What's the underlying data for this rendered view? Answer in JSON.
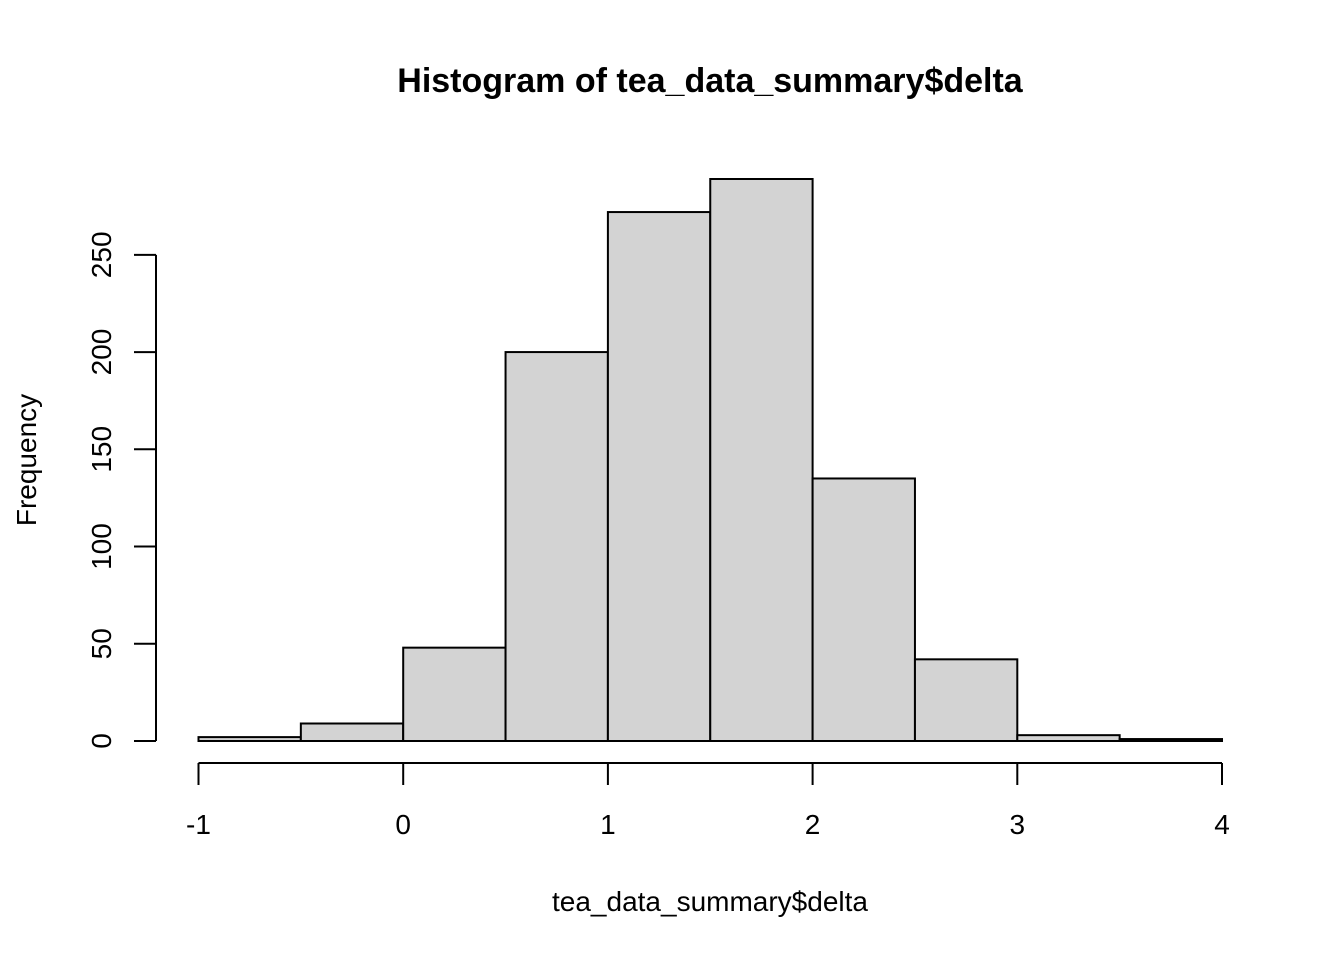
{
  "chart_data": {
    "type": "bar",
    "title": "Histogram of tea_data_summary$delta",
    "xlabel": "tea_data_summary$delta",
    "ylabel": "Frequency",
    "bins": [
      {
        "start": -1.0,
        "end": -0.5,
        "count": 2
      },
      {
        "start": -0.5,
        "end": 0.0,
        "count": 9
      },
      {
        "start": 0.0,
        "end": 0.5,
        "count": 48
      },
      {
        "start": 0.5,
        "end": 1.0,
        "count": 200
      },
      {
        "start": 1.0,
        "end": 1.5,
        "count": 272
      },
      {
        "start": 1.5,
        "end": 2.0,
        "count": 289
      },
      {
        "start": 2.0,
        "end": 2.5,
        "count": 135
      },
      {
        "start": 2.5,
        "end": 3.0,
        "count": 42
      },
      {
        "start": 3.0,
        "end": 3.5,
        "count": 3
      },
      {
        "start": 3.5,
        "end": 4.0,
        "count": 1
      }
    ],
    "xlim": [
      -1,
      4
    ],
    "ylim": [
      0,
      289
    ],
    "x_ticks": [
      "-1",
      "0",
      "1",
      "2",
      "3",
      "4"
    ],
    "y_ticks": [
      "0",
      "50",
      "100",
      "150",
      "200",
      "250"
    ],
    "grid": false,
    "bar_color": "#d3d3d3",
    "border_color": "#000000"
  }
}
